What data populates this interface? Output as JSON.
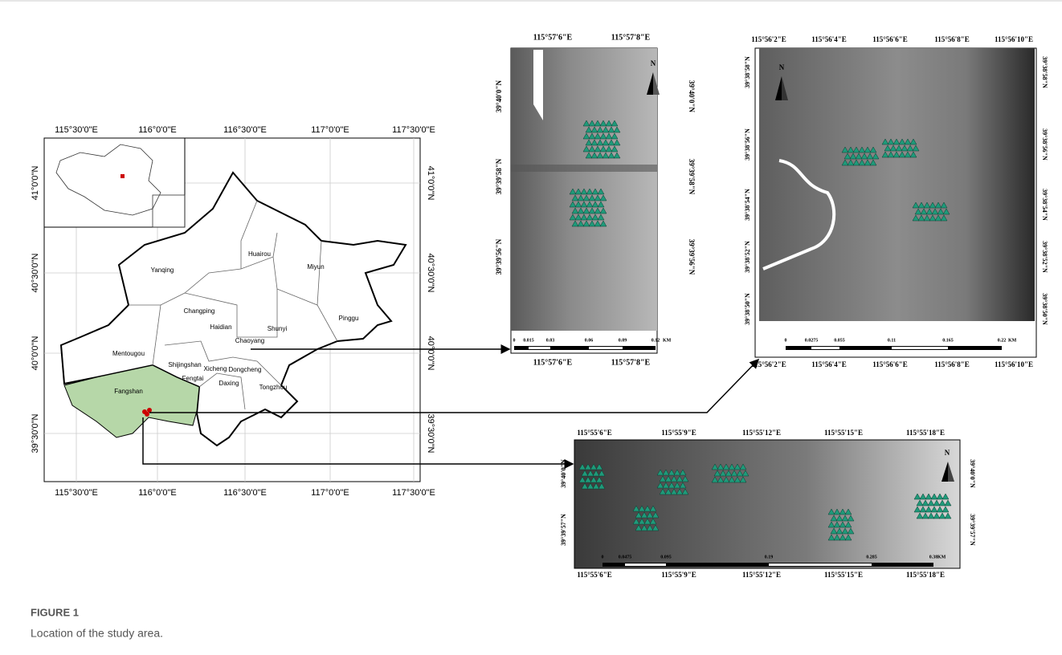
{
  "figure": {
    "label": "FIGURE 1",
    "caption": "Location of the study area."
  },
  "beijing_map": {
    "x_labels": [
      "115°30'0\"E",
      "116°0'0\"E",
      "116°30'0\"E",
      "117°0'0\"E",
      "117°30'0\"E"
    ],
    "y_labels": [
      "41°0'0\"N",
      "40°30'0\"N",
      "40°0'0\"N",
      "39°30'0\"N"
    ],
    "districts": [
      "Huairou",
      "Miyun",
      "Yanqing",
      "Changping",
      "Shunyi",
      "Pinggu",
      "Chaoyang",
      "Haidian",
      "Mentougou",
      "Shijingshan",
      "Xicheng",
      "Dongcheng",
      "Fengtai",
      "Fangshan",
      "Daxing",
      "Tongzhou"
    ]
  },
  "site_a": {
    "north": "N",
    "x_labels": [
      "115°57'6\"E",
      "115°57'8\"E"
    ],
    "y_labels": [
      "39°40'0\"N",
      "39°39'58\"N",
      "39°39'56\"N"
    ],
    "scale_labels": [
      "0",
      "0.015",
      "0.03",
      "0.06",
      "0.09",
      "0.12",
      "KM"
    ]
  },
  "site_b": {
    "north": "N",
    "x_labels": [
      "115°56'2\"E",
      "115°56'4\"E",
      "115°56'6\"E",
      "115°56'8\"E",
      "115°56'10\"E"
    ],
    "y_labels": [
      "39°38'58\"N",
      "39°38'56\"N",
      "39°38'54\"N",
      "39°38'52\"N",
      "39°38'50\"N"
    ],
    "scale_labels": [
      "0",
      "0.0275",
      "0.055",
      "0.11",
      "0.165",
      "0.22",
      "KM"
    ]
  },
  "site_c": {
    "north": "N",
    "x_labels": [
      "115°55'6\"E",
      "115°55'9\"E",
      "115°55'12\"E",
      "115°55'15\"E",
      "115°55'18\"E"
    ],
    "y_labels": [
      "39°40'0\"N",
      "39°39'57\"N"
    ],
    "scale_labels": [
      "0",
      "0.0475",
      "0.095",
      "0.19",
      "0.285",
      "0.38",
      "KM"
    ]
  }
}
